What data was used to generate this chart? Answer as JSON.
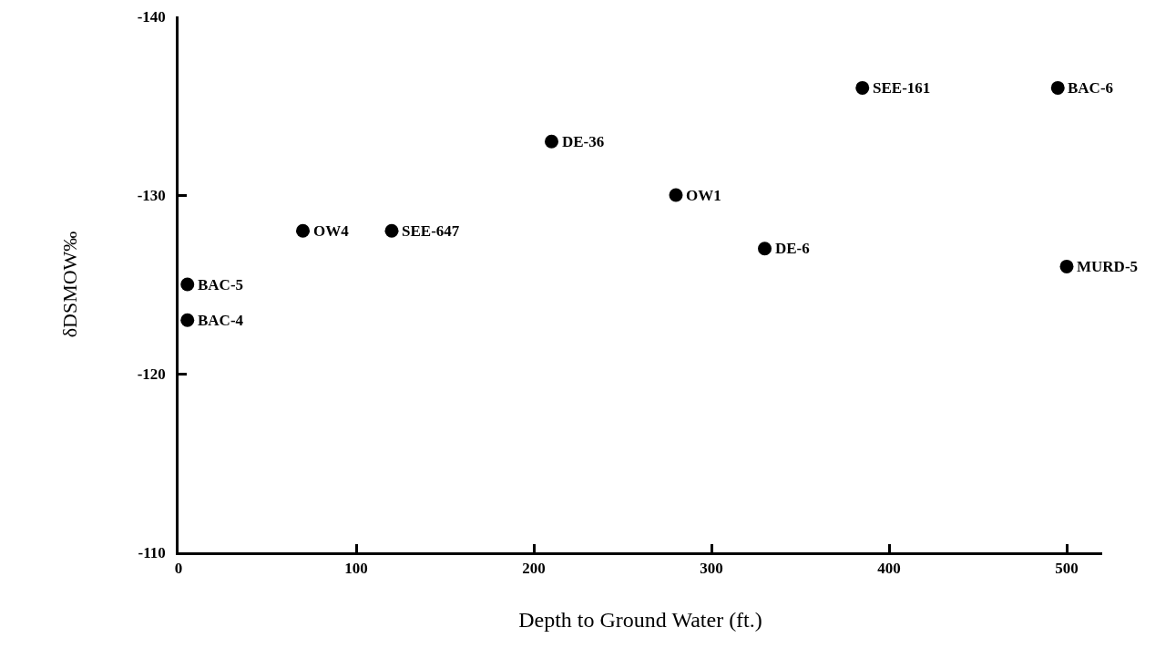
{
  "chart_data": {
    "type": "scatter",
    "xlabel": "Depth to Ground Water (ft.)",
    "ylabel": "δDSMOW‰",
    "x": [
      5,
      5,
      70,
      120,
      210,
      280,
      330,
      385,
      495,
      500
    ],
    "series": [
      {
        "color": "#000000",
        "values": [
          -125,
          -123,
          -128,
          -128,
          -133,
          -130,
          -127,
          -136,
          -136,
          -126
        ]
      }
    ],
    "annotations": [
      {
        "text": "BAC-5",
        "x": 5,
        "y": -125
      },
      {
        "text": "BAC-4",
        "x": 5,
        "y": -123
      },
      {
        "text": "OW4",
        "x": 70,
        "y": -128
      },
      {
        "text": "SEE-647",
        "x": 120,
        "y": -128
      },
      {
        "text": "DE-36",
        "x": 210,
        "y": -133
      },
      {
        "text": "OW1",
        "x": 280,
        "y": -130
      },
      {
        "text": "DE-6",
        "x": 330,
        "y": -127
      },
      {
        "text": "SEE-161",
        "x": 385,
        "y": -136
      },
      {
        "text": "BAC-6",
        "x": 495,
        "y": -136
      },
      {
        "text": "MURD-5",
        "x": 500,
        "y": -126
      }
    ],
    "xlim": [
      0,
      520
    ],
    "xticks": [
      0,
      100,
      200,
      300,
      400,
      500
    ],
    "ylim": [
      -110,
      -140
    ],
    "yticks": [
      -110,
      -120,
      -130,
      -140
    ],
    "marker": "circle"
  }
}
